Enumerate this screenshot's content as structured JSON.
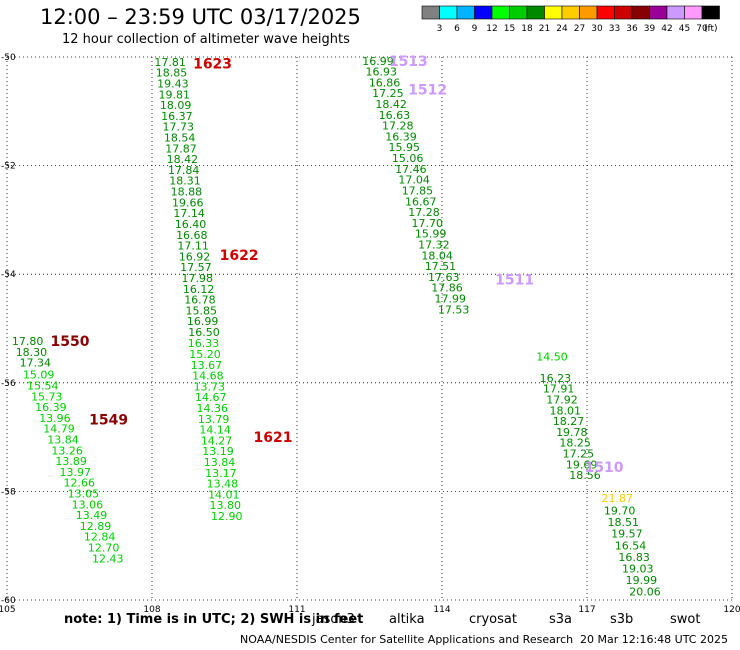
{
  "header": {
    "title": "12:00 – 23:59 UTC 03/17/2025",
    "subtitle": "12 hour collection of altimeter wave heights"
  },
  "colorbar": {
    "unit_label": "(ft)",
    "bins": [
      {
        "label": "3",
        "color": "#808080"
      },
      {
        "label": "6",
        "color": "#00ffff"
      },
      {
        "label": "9",
        "color": "#00b4ff"
      },
      {
        "label": "12",
        "color": "#0000ff"
      },
      {
        "label": "15",
        "color": "#00ff00"
      },
      {
        "label": "18",
        "color": "#00cc00"
      },
      {
        "label": "21",
        "color": "#008800"
      },
      {
        "label": "24",
        "color": "#ffff00"
      },
      {
        "label": "27",
        "color": "#ffcc00"
      },
      {
        "label": "30",
        "color": "#ff9900"
      },
      {
        "label": "33",
        "color": "#ff0000"
      },
      {
        "label": "36",
        "color": "#cc0000"
      },
      {
        "label": "39",
        "color": "#880000"
      },
      {
        "label": "42",
        "color": "#990099"
      },
      {
        "label": "45",
        "color": "#cc99ff"
      },
      {
        "label": "70",
        "color": "#ff99ff"
      },
      {
        "label": "",
        "color": "#000000"
      }
    ]
  },
  "map": {
    "lon_range": [
      105,
      120
    ],
    "lat_range": [
      -60,
      -50
    ],
    "lon_ticks": [
      "105",
      "108",
      "111",
      "114",
      "117",
      "120"
    ],
    "lat_ticks": [
      "-50",
      "-52",
      "-54",
      "-56",
      "-58",
      "-60"
    ],
    "grid": "dotted",
    "passes": [
      {
        "label": "1623",
        "color": "#cc0000",
        "lon": 108.85,
        "lat": -50.12
      },
      {
        "label": "1622",
        "color": "#cc0000",
        "lon": 109.4,
        "lat": -53.65
      },
      {
        "label": "1621",
        "color": "#cc0000",
        "lon": 110.1,
        "lat": -57.0
      },
      {
        "label": "1550",
        "color": "#880000",
        "lon": 105.9,
        "lat": -55.23
      },
      {
        "label": "1549",
        "color": "#880000",
        "lon": 106.7,
        "lat": -56.68
      },
      {
        "label": "1513",
        "color": "#cc99ff",
        "lon": 112.9,
        "lat": -50.07
      },
      {
        "label": "1512",
        "color": "#cc99ff",
        "lon": 113.3,
        "lat": -50.6
      },
      {
        "label": "1511",
        "color": "#cc99ff",
        "lon": 115.1,
        "lat": -54.1
      },
      {
        "label": "1510",
        "color": "#cc99ff",
        "lon": 116.95,
        "lat": -57.55
      }
    ],
    "tracks": [
      {
        "color": "#008800",
        "lon_start": 108.05,
        "lat_start": -50.09,
        "lon_step": 0.028,
        "lat_step": 0.199,
        "values": [
          "17.81",
          "18.85",
          "19.43",
          "19.81",
          "18.09",
          "16.37",
          "17.73",
          "18.54",
          "17.87",
          "18.42",
          "17.84",
          "18.31",
          "18.88",
          "19.66",
          "17.14",
          "16.40",
          "16.68",
          "17.11",
          "16.92",
          "17.57",
          "17.98",
          "16.12",
          "16.78",
          "15.85",
          "16.99",
          "16.50"
        ]
      },
      {
        "color": "#00cc00",
        "lon_start": 108.74,
        "lat_start": -55.27,
        "lon_step": 0.03,
        "lat_step": 0.199,
        "values": [
          "16.33",
          "15.20",
          "13.67",
          "14.68",
          "13.73",
          "14.67",
          "14.36",
          "13.79",
          "14.14",
          "14.27",
          "13.19",
          "13.84",
          "13.17",
          "13.48",
          "14.01",
          "13.80",
          "12.90"
        ]
      },
      {
        "color": "#008800",
        "lon_start": 105.1,
        "lat_start": -55.23,
        "lon_step": 0.08,
        "lat_step": 0.2,
        "values": [
          "17.80",
          "18.30",
          "17.34"
        ]
      },
      {
        "color": "#00cc00",
        "lon_start": 105.33,
        "lat_start": -55.85,
        "lon_step": 0.084,
        "lat_step": 0.199,
        "values": [
          "15.09",
          "15.54",
          "15.73",
          "16.39",
          "13.96",
          "14.79",
          "13.84",
          "13.26",
          "13.89",
          "13.97",
          "12.66",
          "13.05",
          "13.06",
          "13.49",
          "12.89",
          "12.84",
          "12.70",
          "12.43"
        ]
      },
      {
        "color": "#008800",
        "lon_start": 112.35,
        "lat_start": -50.07,
        "lon_step": 0.068,
        "lat_step": 0.199,
        "values": [
          "16.99",
          "16.93",
          "16.86",
          "17.25",
          "18.42",
          "16.63",
          "17.28",
          "16.39",
          "15.95",
          "15.06",
          "17.46",
          "17.04",
          "17.85",
          "16.67",
          "17.28",
          "17.70",
          "15.99",
          "17.32",
          "18.04",
          "17.51",
          "17.63",
          "17.86",
          "17.99",
          "17.53"
        ]
      },
      {
        "color": "#00cc00",
        "lon_start": 115.95,
        "lat_start": -55.52,
        "lon_step": 0.0,
        "lat_step": 0.0,
        "values": [
          "14.50"
        ]
      },
      {
        "color": "#008800",
        "lon_start": 116.02,
        "lat_start": -55.91,
        "lon_step": 0.068,
        "lat_step": 0.199,
        "values": [
          "16.23",
          "17.91",
          "17.92",
          "18.01",
          "18.27",
          "19.78",
          "18.25",
          "17.25",
          "19.69",
          "18.56"
        ]
      },
      {
        "color": "#ffcc00",
        "lon_start": 117.3,
        "lat_start": -58.12,
        "lon_step": 0.0,
        "lat_step": 0.0,
        "values": [
          "21.87"
        ]
      },
      {
        "color": "#008800",
        "lon_start": 117.35,
        "lat_start": -58.35,
        "lon_step": 0.075,
        "lat_step": 0.214,
        "values": [
          "19.70",
          "18.51",
          "19.57",
          "16.54",
          "16.83",
          "19.03",
          "19.99",
          "20.06"
        ]
      }
    ]
  },
  "note": {
    "text": "note:  1) Time is in UTC; 2) SWH is in feet"
  },
  "satellites": [
    {
      "name": "jason3",
      "color": "#008800"
    },
    {
      "name": "altika",
      "color": "#ff9900"
    },
    {
      "name": "cryosat",
      "color": "#ff0000"
    },
    {
      "name": "s3a",
      "color": "#880000"
    },
    {
      "name": "s3b",
      "color": "#cc99ff"
    },
    {
      "name": "swot",
      "color": "#ff99ff"
    }
  ],
  "footer": {
    "org": "NOAA/NESDIS Center for Satellite Applications and Research",
    "timestamp": "20 Mar 12:16:48 UTC 2025"
  }
}
